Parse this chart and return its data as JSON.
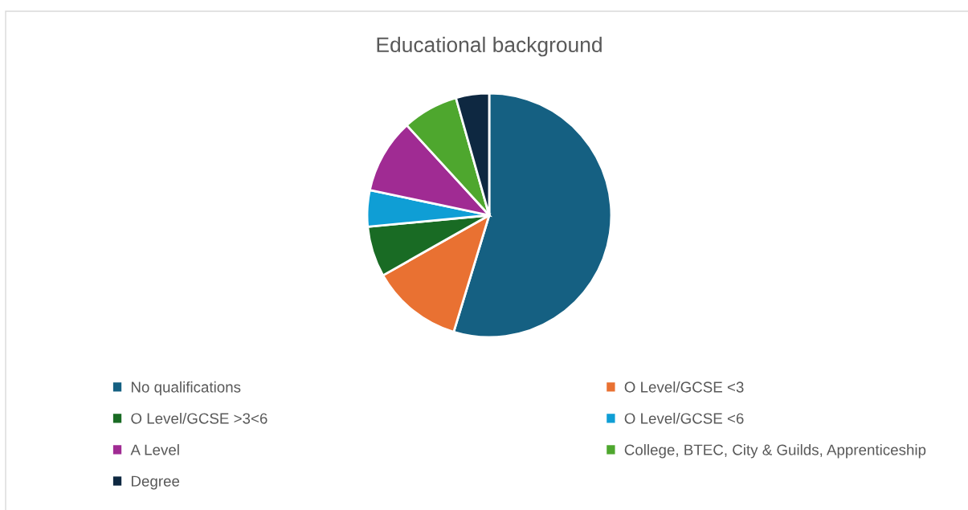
{
  "chart_data": {
    "type": "pie",
    "title": "Educational background",
    "categories": [
      "No qualifications",
      "O Level/GCSE <3",
      "O Level/GCSE >3<6",
      "O Level/GCSE <6",
      "A Level",
      "College, BTEC, City & Guilds, Apprenticeship",
      "Degree"
    ],
    "values": [
      54.7,
      12.1,
      6.7,
      4.8,
      9.9,
      7.4,
      4.4
    ],
    "colors": [
      "#156082",
      "#e97132",
      "#196b24",
      "#0f9ed5",
      "#a02b93",
      "#4ea72e",
      "#0e2841"
    ],
    "legend": "bottom"
  }
}
